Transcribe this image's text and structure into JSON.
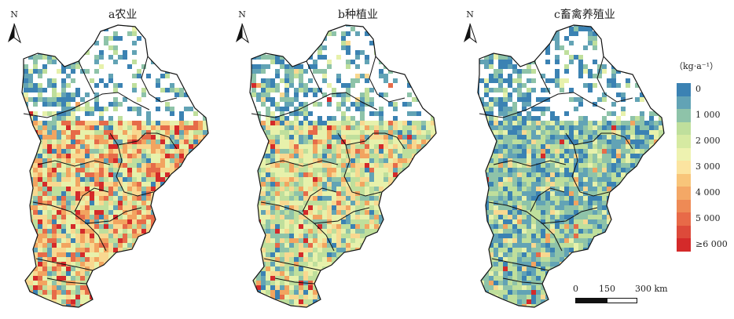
{
  "panels": [
    {
      "id": "a",
      "title": "a农业",
      "north": "N",
      "palette": [
        "#3b82b3",
        "#62a3b5",
        "#8ec3a9",
        "#bfdf9c",
        "#e7f1ab",
        "#f8d890",
        "#f2a460",
        "#e66b49",
        "#d42a2a"
      ],
      "weights": [
        0.04,
        0.05,
        0.06,
        0.12,
        0.18,
        0.2,
        0.18,
        0.1,
        0.07
      ]
    },
    {
      "id": "b",
      "title": "b种植业",
      "north": "N",
      "palette": [
        "#3b82b3",
        "#62a3b5",
        "#8ec3a9",
        "#bfdf9c",
        "#e7f1ab",
        "#f8d890",
        "#f2a460",
        "#e66b49",
        "#d42a2a"
      ],
      "weights": [
        0.05,
        0.06,
        0.1,
        0.24,
        0.26,
        0.16,
        0.08,
        0.03,
        0.02
      ]
    },
    {
      "id": "c",
      "title": "c畜禽养殖业",
      "north": "N",
      "palette": [
        "#3b82b3",
        "#62a3b5",
        "#8ec3a9",
        "#bfdf9c",
        "#e7f1ab",
        "#f8d890",
        "#f2a460",
        "#e66b49",
        "#d42a2a"
      ],
      "weights": [
        0.16,
        0.2,
        0.24,
        0.22,
        0.1,
        0.05,
        0.02,
        0.005,
        0.005
      ]
    }
  ],
  "legend": {
    "unit": "（kg·a⁻¹）",
    "classes": [
      {
        "label": "0",
        "color": "#3b82b3"
      },
      {
        "label": "",
        "color": "#62a3b5"
      },
      {
        "label": "1 000",
        "color": "#8ec3a9"
      },
      {
        "label": "",
        "color": "#bfdf9c"
      },
      {
        "label": "2 000",
        "color": "#d6eaa2"
      },
      {
        "label": "",
        "color": "#eef2b0"
      },
      {
        "label": "3 000",
        "color": "#fbe4a0"
      },
      {
        "label": "",
        "color": "#f8c57a"
      },
      {
        "label": "4 000",
        "color": "#f4a866"
      },
      {
        "label": "",
        "color": "#ee8a55"
      },
      {
        "label": "5 000",
        "color": "#e86a48"
      },
      {
        "label": "",
        "color": "#dd4a3a"
      },
      {
        "label": "≥6 000",
        "color": "#d42a2a"
      }
    ]
  },
  "scale": {
    "ticks": [
      "0",
      "150",
      "300 km"
    ]
  }
}
